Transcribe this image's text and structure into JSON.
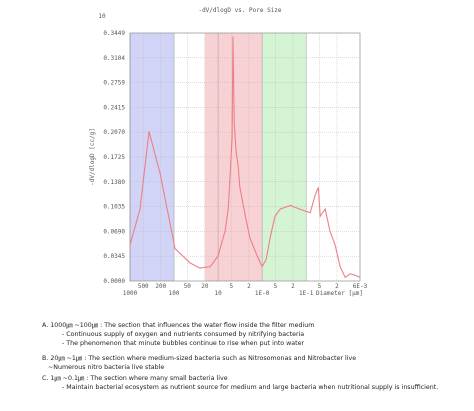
{
  "chart_data": {
    "type": "line",
    "title": "-dV/dlogD vs. Pore Size",
    "corner_label": "10",
    "ylabel": "-dV/dlogD [cc/g]",
    "xlabel": "Diameter [μm]",
    "log_x": true,
    "grid": true,
    "xlim": [
      1000,
      0.006
    ],
    "ylim": [
      0,
      0.3449
    ],
    "yticks": [
      {
        "value": 0,
        "label": "0.0000"
      },
      0.0345,
      {
        "value": 0.069,
        "label": "0.0690"
      },
      0.1035,
      {
        "value": 0.138,
        "label": "0.1380"
      },
      0.1725,
      {
        "value": 0.207,
        "label": "0.2070"
      },
      0.2415,
      0.2759,
      0.3104,
      0.3449
    ],
    "xticks": [
      1000,
      500,
      200,
      100,
      50,
      20,
      10,
      5,
      2,
      {
        "value": 1,
        "label": "1E-0"
      },
      {
        "value": 0.5,
        "label": "5"
      },
      {
        "value": 0.2,
        "label": "2"
      },
      {
        "value": 0.1,
        "label": "1E-1"
      },
      {
        "value": 0.05,
        "label": "5"
      },
      {
        "value": 0.02,
        "label": "2"
      },
      {
        "value": 0.006,
        "label": "6E-3"
      }
    ],
    "regions": [
      {
        "range": [
          1000,
          100
        ],
        "color": "#c9cdf5"
      },
      {
        "range": [
          20,
          1
        ],
        "color": "#f7c9cc"
      },
      {
        "range": [
          1,
          0.1
        ],
        "color": "#cdf2cd"
      }
    ],
    "x": [
      1000,
      593,
      370,
      208,
      95,
      43,
      26,
      15,
      10,
      6.9,
      5.9,
      5.3,
      4.8,
      4.6,
      4.3,
      3.9,
      3.5,
      3.2,
      2.4,
      1.9,
      1.4,
      1.1,
      1.0,
      0.81,
      0.66,
      0.51,
      0.39,
      0.23,
      0.14,
      0.081,
      0.062,
      0.053,
      0.048,
      0.037,
      0.029,
      0.022,
      0.017,
      0.013,
      0.01,
      0.0077,
      0.006
    ],
    "series": [
      {
        "color": "#ee7f86",
        "values": [
          0.05,
          0.1,
          0.208,
          0.15,
          0.045,
          0.025,
          0.018,
          0.02,
          0.035,
          0.07,
          0.1,
          0.15,
          0.2,
          0.34,
          0.22,
          0.18,
          0.16,
          0.13,
          0.09,
          0.06,
          0.04,
          0.025,
          0.02,
          0.03,
          0.06,
          0.09,
          0.1,
          0.105,
          0.1,
          0.095,
          0.12,
          0.13,
          0.09,
          0.1,
          0.07,
          0.05,
          0.02,
          0.005,
          0.01,
          0.008,
          0.005
        ]
      }
    ]
  },
  "notes": [
    {
      "heading": "A. 1000㎛ ~100㎛ : The section that influences the water flow inside the filter medium",
      "lines": [
        "- Continuous supply of oxygen and nutrients consumed by nitrifying bacteria",
        "- The phenomenon that minute bubbles continue to rise when put into water"
      ]
    },
    {
      "heading": "B. 20㎛ ~1㎛ : The section where medium-sized bacteria such as Nitrosomonas and Nitrobacter live",
      "lines": [
        "~Numerous nitro bacteria live stable"
      ]
    },
    {
      "heading": "C. 1㎛ ~0.1㎛ : The section where many small bacteria live",
      "lines": [
        "- Maintain bacterial ecosystem as nutrient source for medium and large bacteria when nutritional supply is insufficient."
      ]
    }
  ]
}
